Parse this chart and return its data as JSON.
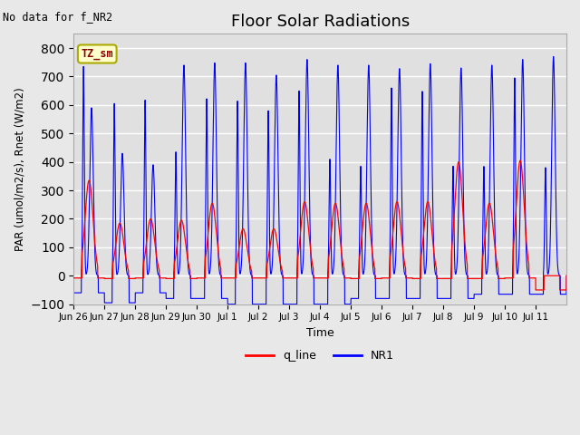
{
  "title": "Floor Solar Radiations",
  "subtitle": "No data for f_NR2",
  "xlabel": "Time",
  "ylabel": "PAR (umol/m2/s), Rnet (W/m2)",
  "ylim": [
    -100,
    850
  ],
  "yticks": [
    -100,
    0,
    100,
    200,
    300,
    400,
    500,
    600,
    700,
    800
  ],
  "legend_labels": [
    "q_line",
    "NR1"
  ],
  "legend_colors": [
    "red",
    "blue"
  ],
  "tz_label": "TZ_sm",
  "tz_label_color": "#880000",
  "tz_box_color": "#ffffcc",
  "tz_box_edge": "#aaaa00",
  "background_color": "#e8e8e8",
  "axes_background": "#e0e0e0",
  "grid_color": "white",
  "line_color_q": "red",
  "line_color_NR1": "blue",
  "n_days": 16,
  "day_labels": [
    "Jun 26",
    "Jun 27",
    "Jun 28",
    "Jun 29",
    "Jun 30",
    "Jul 1",
    "Jul 2",
    "Jul 3",
    "Jul 4",
    "Jul 5",
    "Jul 6",
    "Jul 7",
    "Jul 8",
    "Jul 9",
    "Jul 10",
    "Jul 11"
  ],
  "NR1_spike1": [
    735,
    605,
    617,
    435,
    622,
    614,
    580,
    650,
    410,
    385,
    660,
    648,
    385,
    384,
    695,
    380
  ],
  "NR1_spike2": [
    590,
    430,
    390,
    740,
    748,
    748,
    705,
    760,
    740,
    740,
    728,
    745,
    730,
    740,
    760,
    770
  ],
  "NR1_trough": [
    -60,
    -95,
    -60,
    -80,
    -80,
    -100,
    -100,
    -100,
    -100,
    -80,
    -80,
    -80,
    -80,
    -65,
    -65,
    -65
  ],
  "q_peak": [
    335,
    185,
    200,
    195,
    255,
    165,
    165,
    260,
    255,
    255,
    260,
    260,
    400,
    255,
    405,
    0
  ],
  "q_trough": [
    -8,
    -10,
    -8,
    -10,
    -8,
    -8,
    -8,
    -8,
    -8,
    -10,
    -8,
    -10,
    -10,
    -10,
    -8,
    -50
  ]
}
